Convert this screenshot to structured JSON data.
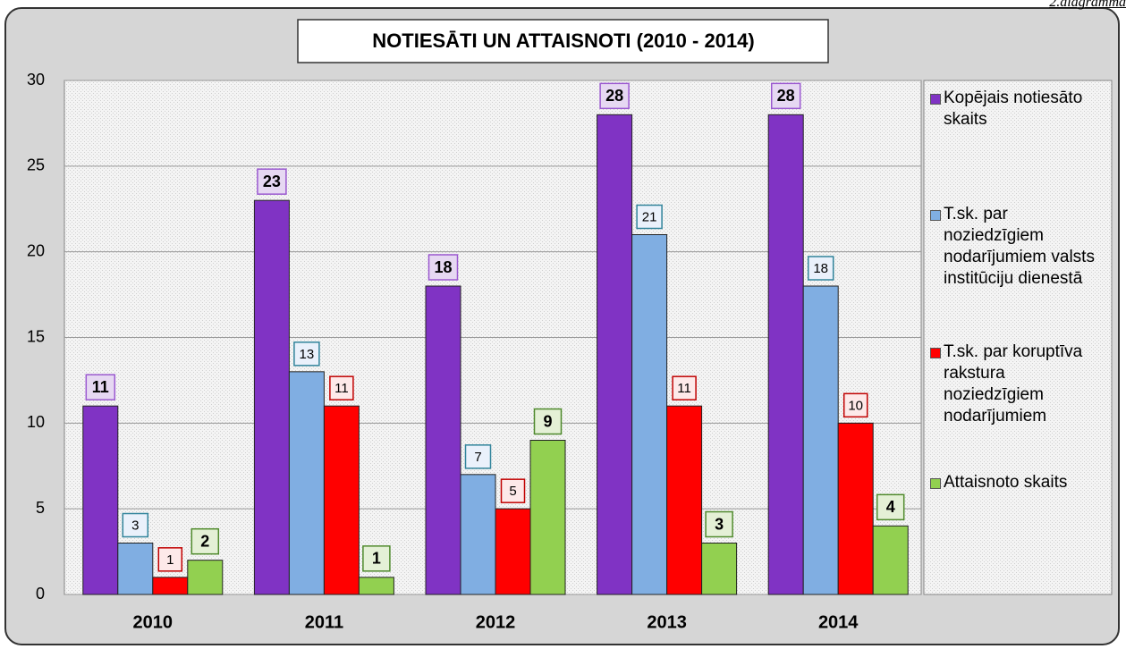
{
  "chart_data": {
    "type": "bar",
    "title": "NOTIESĀTI UN ATTAISNOTI (2010 - 2014)",
    "annotation": "2.diagramma",
    "categories": [
      "2010",
      "2011",
      "2012",
      "2013",
      "2014"
    ],
    "series": [
      {
        "name": "Kopējais notiesāto skaits",
        "color": "#8033c4",
        "values": [
          11,
          23,
          18,
          28,
          28
        ]
      },
      {
        "name": "T.sk. par noziedzīgiem nodarījumiem valsts institūciju dienestā",
        "color": "#80aee2",
        "values": [
          3,
          13,
          7,
          21,
          18
        ]
      },
      {
        "name": "T.sk. par koruptīva rakstura noziedzīgiem nodarījumiem",
        "color": "#ff0000",
        "values": [
          1,
          11,
          5,
          11,
          10
        ]
      },
      {
        "name": "Attaisnoto skaits",
        "color": "#92d050",
        "values": [
          2,
          1,
          9,
          3,
          4
        ]
      }
    ],
    "ylim": [
      0,
      30
    ],
    "yticks": [
      0,
      5,
      10,
      15,
      20,
      25,
      30
    ],
    "grid": true,
    "legend": "right"
  }
}
